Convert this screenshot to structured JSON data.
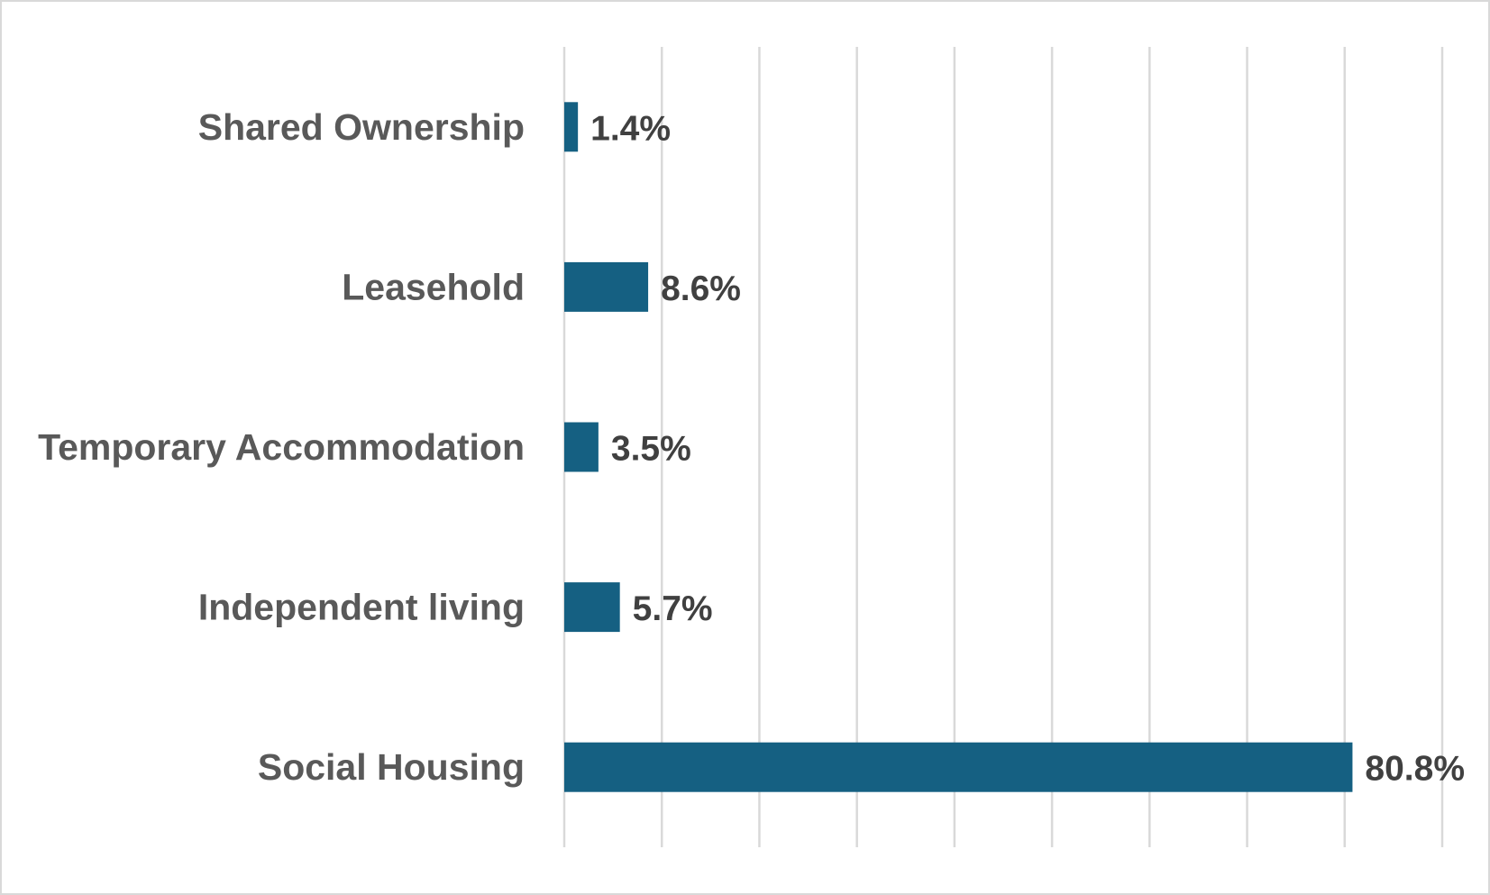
{
  "chart_data": {
    "type": "bar",
    "orientation": "horizontal",
    "categories": [
      "Shared Ownership",
      "Leasehold",
      "Temporary Accommodation",
      "Independent living",
      "Social Housing"
    ],
    "values": [
      1.4,
      8.6,
      3.5,
      5.7,
      80.8
    ],
    "value_labels": [
      "1.4%",
      "8.6%",
      "3.5%",
      "5.7%",
      "80.8%"
    ],
    "xlim": [
      0,
      90
    ],
    "grid": true,
    "gridline_count": 10,
    "legend": "none",
    "colors": {
      "bar": "#156082",
      "gridline": "#d9d9d9",
      "category_text": "#595959",
      "value_text": "#404040",
      "frame": "#d9d9d9"
    }
  }
}
